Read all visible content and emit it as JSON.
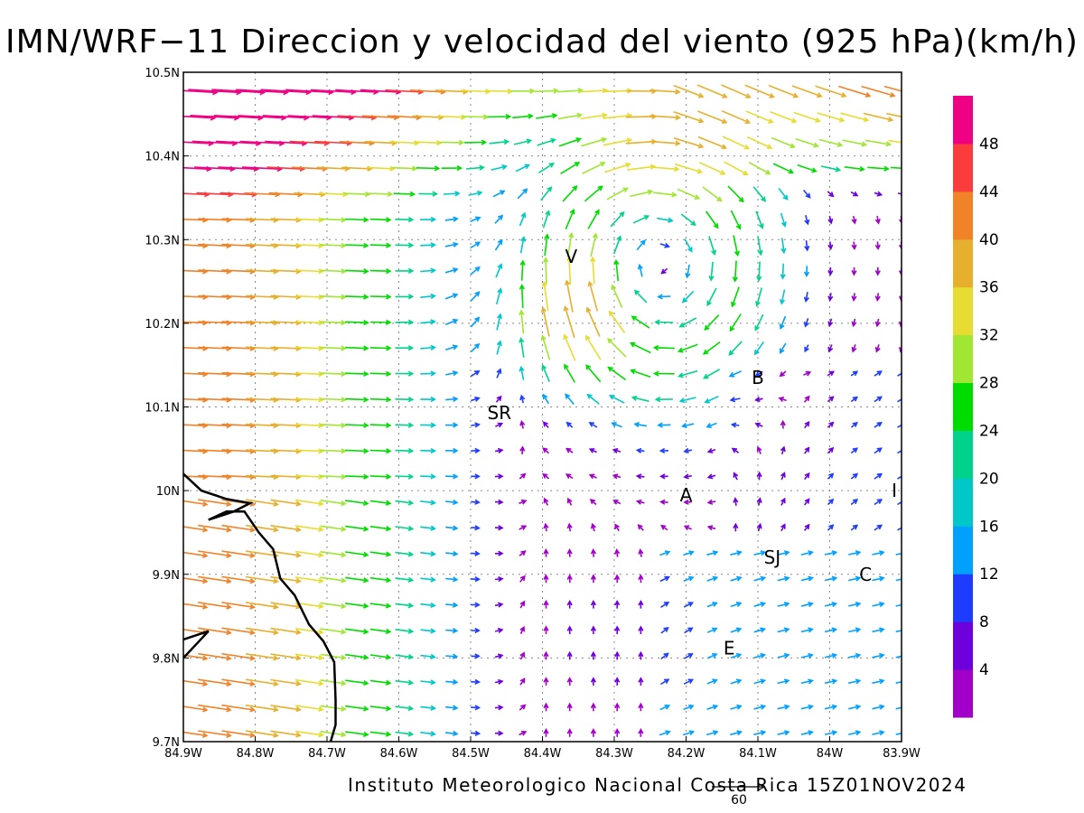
{
  "title": "IMN/WRF−11 Direccion y velocidad del viento (925 hPa)(km/h)",
  "credit": "Instituto Meteorologico Nacional Costa Rica 15Z01NOV2024",
  "reference_vector": {
    "label": "60",
    "speed": 60
  },
  "map": {
    "lon_range": [
      -84.9,
      -83.9
    ],
    "lat_range": [
      9.7,
      10.5
    ],
    "x_ticks": [
      {
        "lon": -84.9,
        "label": "84.9W"
      },
      {
        "lon": -84.8,
        "label": "84.8W"
      },
      {
        "lon": -84.7,
        "label": "84.7W"
      },
      {
        "lon": -84.6,
        "label": "84.6W"
      },
      {
        "lon": -84.5,
        "label": "84.5W"
      },
      {
        "lon": -84.4,
        "label": "84.4W"
      },
      {
        "lon": -84.3,
        "label": "84.3W"
      },
      {
        "lon": -84.2,
        "label": "84.2W"
      },
      {
        "lon": -84.1,
        "label": "84.1W"
      },
      {
        "lon": -84.0,
        "label": "84W"
      },
      {
        "lon": -83.9,
        "label": "83.9W"
      }
    ],
    "y_ticks": [
      {
        "lat": 10.5,
        "label": "10.5N"
      },
      {
        "lat": 10.4,
        "label": "10.4N"
      },
      {
        "lat": 10.3,
        "label": "10.3N"
      },
      {
        "lat": 10.2,
        "label": "10.2N"
      },
      {
        "lat": 10.1,
        "label": "10.1N"
      },
      {
        "lat": 10.0,
        "label": "10N"
      },
      {
        "lat": 9.9,
        "label": "9.9N"
      },
      {
        "lat": 9.8,
        "label": "9.8N"
      },
      {
        "lat": 9.7,
        "label": "9.7N"
      }
    ],
    "cities": [
      {
        "label": "V",
        "lon": -84.36,
        "lat": 10.28
      },
      {
        "label": "B",
        "lon": -84.1,
        "lat": 10.135
      },
      {
        "label": "SR",
        "lon": -84.46,
        "lat": 10.093
      },
      {
        "label": "A",
        "lon": -84.2,
        "lat": 9.995
      },
      {
        "label": "I",
        "lon": -83.91,
        "lat": 10.0
      },
      {
        "label": "SJ",
        "lon": -84.08,
        "lat": 9.92
      },
      {
        "label": "C",
        "lon": -83.95,
        "lat": 9.9
      },
      {
        "label": "E",
        "lon": -84.14,
        "lat": 9.812
      }
    ],
    "coastline": [
      [
        -84.9,
        10.02
      ],
      [
        -84.875,
        10.0
      ],
      [
        -84.84,
        9.99
      ],
      [
        -84.807,
        9.985
      ],
      [
        -84.83,
        9.975
      ],
      [
        -84.865,
        9.965
      ],
      [
        -84.84,
        9.975
      ],
      [
        -84.815,
        9.975
      ],
      [
        -84.795,
        9.95
      ],
      [
        -84.775,
        9.93
      ],
      [
        -84.765,
        9.895
      ],
      [
        -84.745,
        9.875
      ],
      [
        -84.725,
        9.84
      ],
      [
        -84.705,
        9.82
      ],
      [
        -84.69,
        9.795
      ],
      [
        -84.688,
        9.75
      ],
      [
        -84.688,
        9.72
      ],
      [
        -84.695,
        9.7
      ]
    ],
    "coastline_spur": [
      [
        -84.9,
        9.8
      ],
      [
        -84.865,
        9.832
      ],
      [
        -84.9,
        9.822
      ]
    ]
  },
  "colorbar": {
    "levels": [
      "4",
      "8",
      "12",
      "16",
      "20",
      "24",
      "28",
      "32",
      "36",
      "40",
      "44",
      "48"
    ],
    "colors": [
      "#a000c8",
      "#6e00dc",
      "#1e3cff",
      "#00a0ff",
      "#00c8c8",
      "#00d28c",
      "#00dc00",
      "#a0e632",
      "#e6dc32",
      "#e6af2d",
      "#f08228",
      "#fa3c3c",
      "#f00082"
    ]
  },
  "wind_field": {
    "units": "km/h",
    "vortex_center": {
      "lon": -84.24,
      "lat": 10.27
    },
    "notes": "Strong westerly flow on the west edge, anticyclonic turning over north-central region, weak flow near 84.4W-84.3W south of 10.05N."
  }
}
